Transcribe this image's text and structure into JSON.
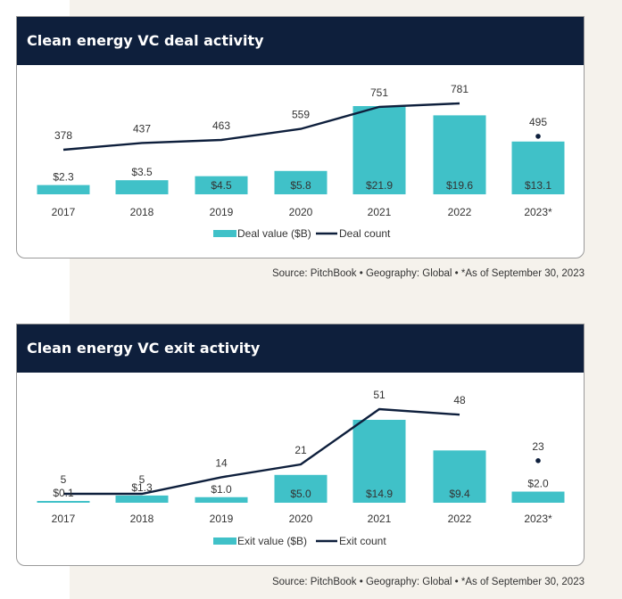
{
  "colors": {
    "bar": "#40c1c8",
    "line": "#0e1f3c",
    "header": "#0e1f3c"
  },
  "chart_data": [
    {
      "type": "bar",
      "title": "Clean energy VC deal activity",
      "categories": [
        "2017",
        "2018",
        "2019",
        "2020",
        "2021",
        "2022",
        "2023*"
      ],
      "series": [
        {
          "name": "Deal value ($B)",
          "type": "bar",
          "values": [
            2.3,
            3.5,
            4.5,
            5.8,
            21.9,
            19.6,
            13.1
          ],
          "labels": [
            "$2.3",
            "$3.5",
            "$4.5",
            "$5.8",
            "$21.9",
            "$19.6",
            "$13.1"
          ]
        },
        {
          "name": "Deal count",
          "type": "line",
          "values": [
            378,
            437,
            463,
            559,
            751,
            781,
            495
          ],
          "labels": [
            "378",
            "437",
            "463",
            "559",
            "751",
            "781",
            "495"
          ]
        }
      ],
      "note_2023": "2023 count shown as a separate point",
      "source": "Source: PitchBook  •  Geography: Global  •  *As of September 30, 2023"
    },
    {
      "type": "bar",
      "title": "Clean energy VC exit activity",
      "categories": [
        "2017",
        "2018",
        "2019",
        "2020",
        "2021",
        "2022",
        "2023*"
      ],
      "series": [
        {
          "name": "Exit value ($B)",
          "type": "bar",
          "values": [
            0.1,
            1.3,
            1.0,
            5.0,
            14.9,
            9.4,
            2.0
          ],
          "labels": [
            "$0.1",
            "$1.3",
            "$1.0",
            "$5.0",
            "$14.9",
            "$9.4",
            "$2.0"
          ]
        },
        {
          "name": "Exit count",
          "type": "line",
          "values": [
            5,
            5,
            14,
            21,
            51,
            48,
            23
          ],
          "labels": [
            "5",
            "5",
            "14",
            "21",
            "51",
            "48",
            "23"
          ]
        }
      ],
      "source": "Source: PitchBook  •  Geography: Global  •  *As of September 30, 2023"
    }
  ]
}
